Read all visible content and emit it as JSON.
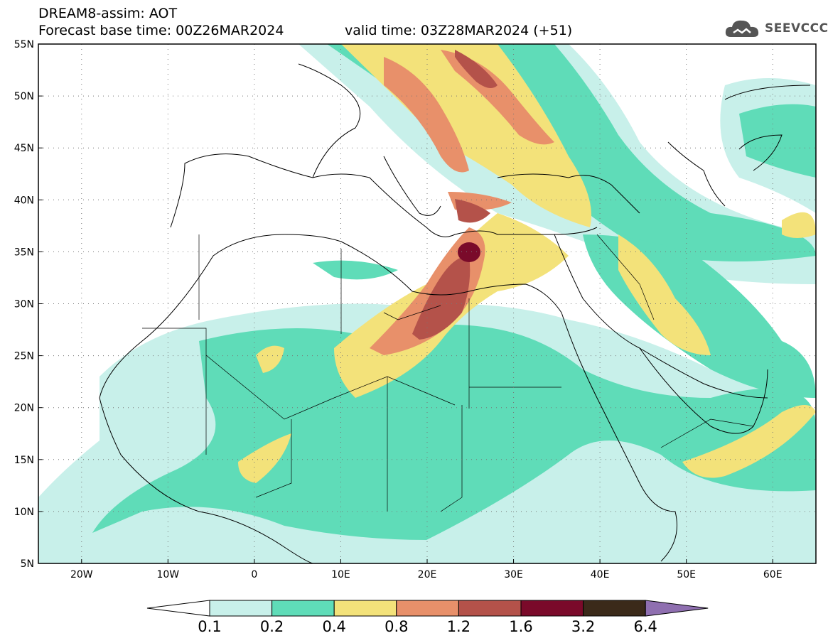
{
  "header": {
    "line1": "DREAM8-assim: AOT",
    "line2": "Forecast base time: 00Z26MAR2024",
    "valid": "valid time: 03Z28MAR2024 (+51)"
  },
  "logo": {
    "text": "SEEVCCC",
    "icon": "cloud-icon"
  },
  "map": {
    "lon_range": [
      -25,
      65
    ],
    "lat_range": [
      5,
      55
    ],
    "lat_ticks": [
      "5N",
      "10N",
      "15N",
      "20N",
      "25N",
      "30N",
      "35N",
      "40N",
      "45N",
      "50N",
      "55N"
    ],
    "lon_ticks": [
      "20W",
      "10W",
      "0",
      "10E",
      "20E",
      "30E",
      "40E",
      "50E",
      "60E"
    ],
    "grid": "dashed",
    "dust_plume_regions": [
      {
        "level": "0.2",
        "desc": "Sahara to Sahel band"
      },
      {
        "level": "0.8",
        "desc": "Libya to Greece plume"
      },
      {
        "level": "3.2",
        "desc": "Maximum near Crete"
      }
    ]
  },
  "colorbar": {
    "labels": [
      "0.1",
      "0.2",
      "0.4",
      "0.8",
      "1.2",
      "1.6",
      "3.2",
      "6.4"
    ],
    "colors": [
      "#c8f0ea",
      "#5fdcb8",
      "#f3e27a",
      "#e8906a",
      "#b4524a",
      "#7a0a2a",
      "#3b2a1a",
      "#8f6fb0"
    ]
  }
}
